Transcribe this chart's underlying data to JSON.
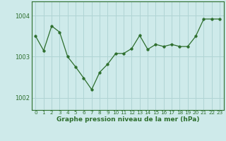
{
  "x": [
    0,
    1,
    2,
    3,
    4,
    5,
    6,
    7,
    8,
    9,
    10,
    11,
    12,
    13,
    14,
    15,
    16,
    17,
    18,
    19,
    20,
    21,
    22,
    23
  ],
  "y": [
    1003.5,
    1003.15,
    1003.75,
    1003.6,
    1003.0,
    1002.75,
    1002.48,
    1002.2,
    1002.62,
    1002.82,
    1003.08,
    1003.08,
    1003.2,
    1003.52,
    1003.18,
    1003.3,
    1003.25,
    1003.3,
    1003.25,
    1003.25,
    1003.5,
    1003.92,
    1003.92,
    1003.92
  ],
  "line_color": "#2d6e2d",
  "marker": "o",
  "marker_size": 2.5,
  "bg_color": "#ceeaea",
  "grid_color": "#b0d4d4",
  "axes_color": "#2d6e2d",
  "tick_label_color": "#2d6e2d",
  "xlabel": "Graphe pression niveau de la mer (hPa)",
  "xlabel_color": "#2d6e2d",
  "ylim": [
    1001.7,
    1004.35
  ],
  "yticks": [
    1002,
    1003,
    1004
  ],
  "xticks": [
    0,
    1,
    2,
    3,
    4,
    5,
    6,
    7,
    8,
    9,
    10,
    11,
    12,
    13,
    14,
    15,
    16,
    17,
    18,
    19,
    20,
    21,
    22,
    23
  ],
  "xtick_labels": [
    "0",
    "1",
    "2",
    "3",
    "4",
    "5",
    "6",
    "7",
    "8",
    "9",
    "10",
    "11",
    "12",
    "13",
    "14",
    "15",
    "16",
    "17",
    "18",
    "19",
    "20",
    "21",
    "22",
    "23"
  ],
  "xlim": [
    -0.5,
    23.5
  ]
}
